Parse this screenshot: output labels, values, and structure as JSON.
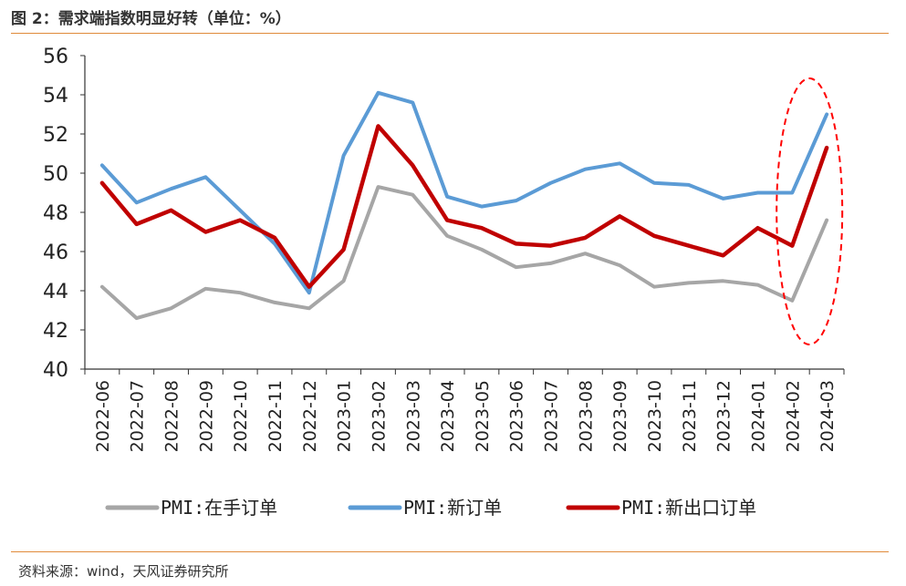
{
  "figure": {
    "title": "图 2：需求端指数明显好转（单位：%）",
    "source": "资料来源：wind，天风证券研究所"
  },
  "chart_data": {
    "type": "line",
    "categories": [
      "2022-06",
      "2022-07",
      "2022-08",
      "2022-09",
      "2022-10",
      "2022-11",
      "2022-12",
      "2023-01",
      "2023-02",
      "2023-03",
      "2023-04",
      "2023-05",
      "2023-06",
      "2023-07",
      "2023-08",
      "2023-09",
      "2023-10",
      "2023-11",
      "2023-12",
      "2024-01",
      "2024-02",
      "2024-03"
    ],
    "ylim": [
      40,
      56
    ],
    "yticks": [
      40,
      42,
      44,
      46,
      48,
      50,
      52,
      54,
      56
    ],
    "legend_position": "bottom",
    "series": [
      {
        "name": "PMI:在手订单",
        "color": "#a6a6a6",
        "values": [
          44.2,
          42.6,
          43.1,
          44.1,
          43.9,
          43.4,
          43.1,
          44.5,
          49.3,
          48.9,
          46.8,
          46.1,
          45.2,
          45.4,
          45.9,
          45.3,
          44.2,
          44.4,
          44.5,
          44.3,
          43.5,
          47.6
        ]
      },
      {
        "name": "PMI:新订单",
        "color": "#5b9bd5",
        "values": [
          50.4,
          48.5,
          49.2,
          49.8,
          48.1,
          46.4,
          43.9,
          50.9,
          54.1,
          53.6,
          48.8,
          48.3,
          48.6,
          49.5,
          50.2,
          50.5,
          49.5,
          49.4,
          48.7,
          49.0,
          49.0,
          53.0
        ]
      },
      {
        "name": "PMI:新出口订单",
        "color": "#c00000",
        "values": [
          49.5,
          47.4,
          48.1,
          47.0,
          47.6,
          46.7,
          44.2,
          46.1,
          52.4,
          50.4,
          47.6,
          47.2,
          46.4,
          46.3,
          46.7,
          47.8,
          46.8,
          46.3,
          45.8,
          47.2,
          46.3,
          51.3
        ]
      }
    ],
    "annotation": {
      "shape": "dashed-ellipse",
      "color": "#ff0000",
      "highlights": [
        "2024-02",
        "2024-03"
      ]
    }
  }
}
